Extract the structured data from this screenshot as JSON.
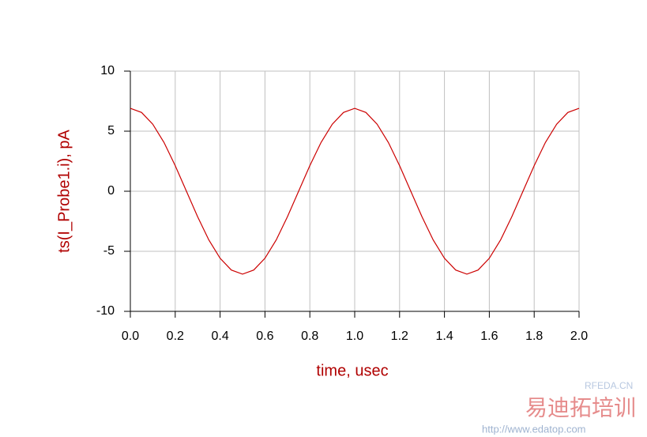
{
  "chart_data": {
    "type": "line",
    "xlabel": "time, usec",
    "ylabel": "ts(I_Probe1.i), pA",
    "x": [
      0,
      0.05,
      0.1,
      0.15,
      0.2,
      0.25,
      0.3,
      0.35,
      0.4,
      0.45,
      0.5,
      0.55,
      0.6,
      0.65,
      0.7,
      0.75,
      0.8,
      0.85,
      0.9,
      0.95,
      1,
      1.05,
      1.1,
      1.15,
      1.2,
      1.25,
      1.3,
      1.35,
      1.4,
      1.45,
      1.5,
      1.55,
      1.6,
      1.65,
      1.7,
      1.75,
      1.8,
      1.85,
      1.9,
      1.95,
      2
    ],
    "series": [
      {
        "color": "#cc0000",
        "values": [
          6.9,
          6.56,
          5.58,
          4.06,
          2.13,
          0,
          -2.13,
          -4.06,
          -5.58,
          -6.56,
          -6.9,
          -6.56,
          -5.58,
          -4.06,
          -2.13,
          0,
          2.13,
          4.06,
          5.58,
          6.56,
          6.9,
          6.56,
          5.58,
          4.06,
          2.13,
          0,
          -2.13,
          -4.06,
          -5.58,
          -6.56,
          -6.9,
          -6.56,
          -5.58,
          -4.06,
          -2.13,
          0,
          2.13,
          4.06,
          5.58,
          6.56,
          6.9
        ]
      }
    ],
    "xlim": [
      0,
      2
    ],
    "ylim": [
      -10,
      10
    ],
    "xticks": [
      {
        "value": 0,
        "label": "0.0"
      },
      0.2,
      0.4,
      0.6,
      0.8,
      {
        "value": 1,
        "label": "1.0"
      },
      1.2,
      1.4,
      1.6,
      1.8,
      {
        "value": 2,
        "label": "2.0"
      }
    ],
    "yticks": [
      10,
      5,
      0,
      -5,
      -10
    ],
    "grid": true,
    "watermarks": [
      "RFEDA.CN",
      "易迪拓培训",
      "http://www.edatop.com"
    ]
  }
}
